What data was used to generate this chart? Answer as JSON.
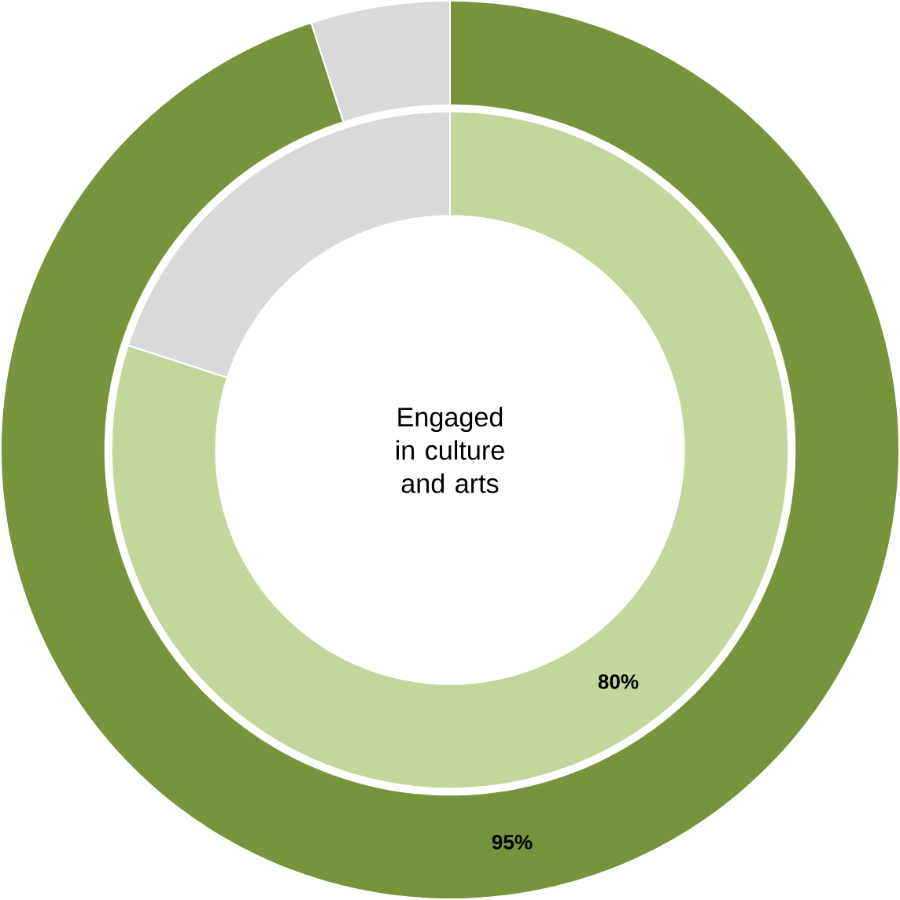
{
  "chart_data": [
    {
      "type": "donut",
      "categories": [
        null,
        null
      ],
      "values": [
        95,
        5
      ],
      "colors": [
        "#77933c",
        "#d9d9d9"
      ],
      "value_labels": [
        "95%",
        null
      ]
    },
    {
      "type": "donut",
      "categories": [
        null,
        null
      ],
      "values": [
        80,
        20
      ],
      "colors": [
        "#c3d69b",
        "#d9d9d9"
      ],
      "value_labels": [
        "80%",
        null
      ],
      "annotations": [
        "Engaged in culture and arts"
      ]
    }
  ]
}
